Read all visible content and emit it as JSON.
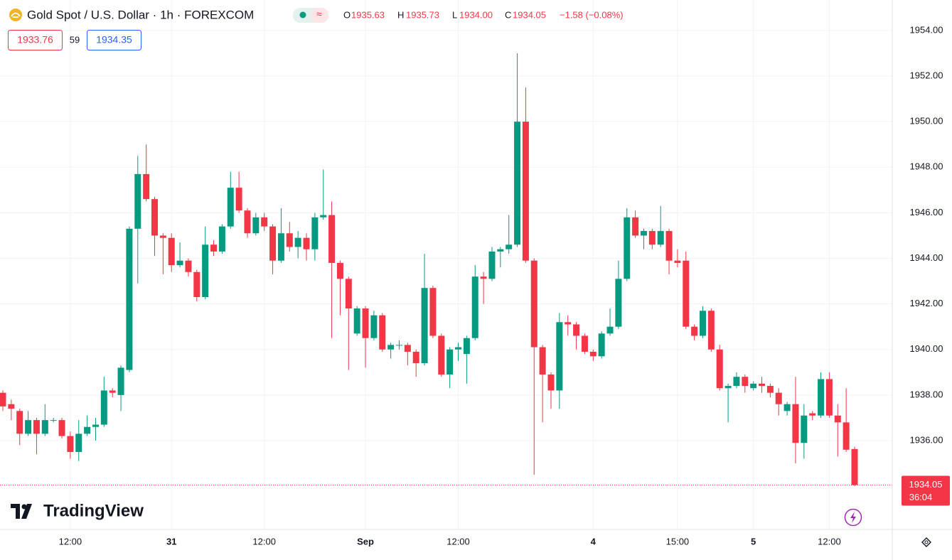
{
  "header": {
    "title": "Gold Spot / U.S. Dollar · 1h · FOREXCOM",
    "readout": {
      "o_label": "O",
      "o": "1935.63",
      "h_label": "H",
      "h": "1935.73",
      "l_label": "L",
      "l": "1934.00",
      "c_label": "C",
      "c": "1934.05",
      "change": "−1.58 (−0.08%)"
    },
    "bid": "1933.76",
    "spread": "59",
    "ask": "1934.35",
    "countdown": "36:04",
    "brand": "TradingView"
  },
  "chart_data": {
    "type": "candlestick",
    "up_color": "#089981",
    "down_color": "#f23645",
    "grid": true,
    "categories": [
      null,
      null,
      null,
      null,
      null,
      null,
      null,
      null,
      "12:00",
      null,
      null,
      null,
      null,
      null,
      null,
      null,
      null,
      null,
      null,
      null,
      "31",
      null,
      null,
      null,
      null,
      null,
      null,
      null,
      null,
      null,
      null,
      "12:00",
      null,
      null,
      null,
      null,
      null,
      null,
      null,
      null,
      null,
      null,
      null,
      "Sep",
      null,
      null,
      null,
      null,
      null,
      null,
      null,
      null,
      null,
      null,
      "12:00",
      null,
      null,
      null,
      null,
      null,
      null,
      null,
      null,
      null,
      null,
      null,
      null,
      null,
      null,
      null,
      "4",
      null,
      null,
      null,
      null,
      null,
      null,
      null,
      null,
      null,
      "15:00",
      null,
      null,
      null,
      null,
      null,
      null,
      null,
      null,
      "5",
      null,
      null,
      null,
      null,
      null,
      null,
      null,
      null,
      "12:00",
      null,
      null,
      null
    ],
    "open": [
      1938.1,
      1937.6,
      1937.3,
      1936.3,
      1936.9,
      1936.3,
      1936.9,
      1936.9,
      1936.2,
      1935.5,
      1936.3,
      1936.6,
      1936.7,
      1938.2,
      1938.0,
      1939.1,
      1945.3,
      1947.7,
      1946.6,
      1945.0,
      1944.9,
      1943.7,
      1943.9,
      1943.4,
      1942.3,
      1944.6,
      1944.3,
      1945.4,
      1947.1,
      1946.1,
      1945.1,
      1945.8,
      1945.4,
      1943.9,
      1945.1,
      1944.5,
      1944.9,
      1944.4,
      1945.8,
      1945.9,
      1943.8,
      1943.1,
      1940.7,
      1941.8,
      1940.5,
      1941.5,
      1940.0,
      1940.2,
      1940.2,
      1939.9,
      1939.4,
      1942.7,
      1940.6,
      1938.9,
      1940.0,
      1939.8,
      1940.5,
      1943.2,
      1943.1,
      1944.3,
      1944.4,
      1944.6,
      1950.0,
      1943.9,
      1940.1,
      1938.9,
      1938.2,
      1941.2,
      1941.1,
      1940.6,
      1939.9,
      1939.7,
      1940.7,
      1941.0,
      1943.1,
      1945.8,
      1945.0,
      1945.2,
      1944.6,
      1945.2,
      1943.9,
      1943.9,
      1941.0,
      1940.6,
      1941.7,
      1940.0,
      1938.3,
      1938.4,
      1938.8,
      1938.3,
      1938.5,
      1938.4,
      1938.1,
      1937.3,
      1937.6,
      1935.9,
      1937.2,
      1937.1,
      1938.7,
      1937.1,
      1936.8,
      1935.63
    ],
    "high": [
      1938.2,
      1937.8,
      1937.4,
      1937.3,
      1937.0,
      1937.6,
      1937.0,
      1937.0,
      1936.4,
      1936.9,
      1937.1,
      1937.0,
      1938.8,
      1938.3,
      1939.3,
      1945.4,
      1948.5,
      1949.0,
      1946.7,
      1945.1,
      1945.1,
      1944.7,
      1944.0,
      1943.5,
      1945.4,
      1944.8,
      1945.5,
      1947.8,
      1947.8,
      1946.2,
      1946.0,
      1946.0,
      1945.5,
      1946.2,
      1945.6,
      1945.2,
      1945.1,
      1946.0,
      1947.9,
      1946.5,
      1943.9,
      1943.2,
      1941.9,
      1941.9,
      1941.7,
      1941.6,
      1940.3,
      1940.4,
      1940.3,
      1940.0,
      1944.2,
      1942.8,
      1940.7,
      1940.1,
      1940.3,
      1940.6,
      1943.7,
      1943.4,
      1944.5,
      1944.5,
      1945.9,
      1953.0,
      1951.5,
      1944.0,
      1940.2,
      1939.0,
      1941.6,
      1941.5,
      1941.2,
      1940.7,
      1940.0,
      1940.8,
      1941.8,
      1943.9,
      1946.2,
      1946.1,
      1945.3,
      1945.3,
      1946.3,
      1945.3,
      1944.4,
      1944.3,
      1941.1,
      1941.9,
      1941.8,
      1940.2,
      1938.5,
      1939.0,
      1938.9,
      1938.6,
      1938.8,
      1938.5,
      1938.3,
      1937.7,
      1938.8,
      1937.6,
      1937.3,
      1939.0,
      1939.0,
      1937.6,
      1938.3,
      1935.73
    ],
    "low": [
      1937.3,
      1936.9,
      1935.8,
      1936.2,
      1935.4,
      1936.2,
      1936.8,
      1936.1,
      1935.2,
      1935.1,
      1936.2,
      1936.0,
      1936.6,
      1937.9,
      1937.3,
      1939.0,
      1942.9,
      1946.5,
      1944.1,
      1943.3,
      1943.4,
      1943.6,
      1943.2,
      1942.1,
      1942.2,
      1944.1,
      1944.2,
      1945.3,
      1946.0,
      1944.9,
      1945.0,
      1945.2,
      1943.3,
      1943.8,
      1944.3,
      1944.0,
      1943.9,
      1943.9,
      1945.7,
      1940.5,
      1941.5,
      1939.1,
      1940.6,
      1939.2,
      1940.4,
      1939.9,
      1939.6,
      1940.0,
      1939.3,
      1938.8,
      1939.3,
      1940.5,
      1938.8,
      1938.3,
      1939.5,
      1938.5,
      1940.4,
      1942.0,
      1943.0,
      1943.6,
      1944.2,
      1944.5,
      1943.8,
      1934.5,
      1936.8,
      1937.4,
      1937.4,
      1940.6,
      1940.0,
      1939.8,
      1939.5,
      1939.6,
      1940.6,
      1940.9,
      1943.0,
      1944.9,
      1944.4,
      1944.4,
      1944.5,
      1943.3,
      1943.6,
      1940.9,
      1940.4,
      1940.5,
      1939.9,
      1938.2,
      1936.8,
      1938.3,
      1938.1,
      1938.2,
      1938.1,
      1937.9,
      1937.1,
      1937.1,
      1935.0,
      1935.2,
      1936.9,
      1937.0,
      1937.0,
      1935.3,
      1935.5,
      1934.0
    ],
    "close": [
      1937.5,
      1937.4,
      1936.3,
      1936.9,
      1936.3,
      1936.9,
      1936.9,
      1936.2,
      1935.5,
      1936.3,
      1936.6,
      1936.7,
      1938.2,
      1938.1,
      1939.2,
      1945.3,
      1947.7,
      1946.6,
      1945.0,
      1944.9,
      1943.7,
      1943.9,
      1943.4,
      1942.3,
      1944.6,
      1944.3,
      1945.4,
      1947.1,
      1946.1,
      1945.1,
      1945.8,
      1945.4,
      1943.9,
      1945.1,
      1944.5,
      1944.9,
      1944.4,
      1945.8,
      1945.9,
      1943.8,
      1943.1,
      1941.8,
      1941.8,
      1940.5,
      1941.5,
      1940.0,
      1940.2,
      1940.2,
      1939.9,
      1939.4,
      1942.7,
      1940.6,
      1938.9,
      1940.0,
      1940.1,
      1940.5,
      1943.2,
      1943.1,
      1944.3,
      1944.4,
      1944.6,
      1950.0,
      1943.9,
      1940.1,
      1938.9,
      1938.2,
      1941.2,
      1941.1,
      1940.6,
      1939.9,
      1939.7,
      1940.7,
      1941.0,
      1943.1,
      1945.8,
      1945.0,
      1945.2,
      1944.6,
      1945.2,
      1943.9,
      1943.8,
      1941.0,
      1940.6,
      1941.7,
      1940.0,
      1938.3,
      1938.4,
      1938.8,
      1938.4,
      1938.5,
      1938.4,
      1938.1,
      1937.6,
      1937.6,
      1935.9,
      1937.1,
      1937.1,
      1938.7,
      1937.1,
      1936.8,
      1935.6,
      1934.05
    ],
    "ylim": [
      1932.1,
      1955.34
    ],
    "yticks": [
      {
        "value": 1936,
        "label": "1936.00"
      },
      {
        "value": 1938,
        "label": "1938.00"
      },
      {
        "value": 1940,
        "label": "1940.00"
      },
      {
        "value": 1942,
        "label": "1942.00"
      },
      {
        "value": 1944,
        "label": "1944.00"
      },
      {
        "value": 1946,
        "label": "1946.00"
      },
      {
        "value": 1948,
        "label": "1948.00"
      },
      {
        "value": 1950,
        "label": "1950.00"
      },
      {
        "value": 1952,
        "label": "1952.00"
      },
      {
        "value": 1954,
        "label": "1954.00"
      }
    ]
  }
}
